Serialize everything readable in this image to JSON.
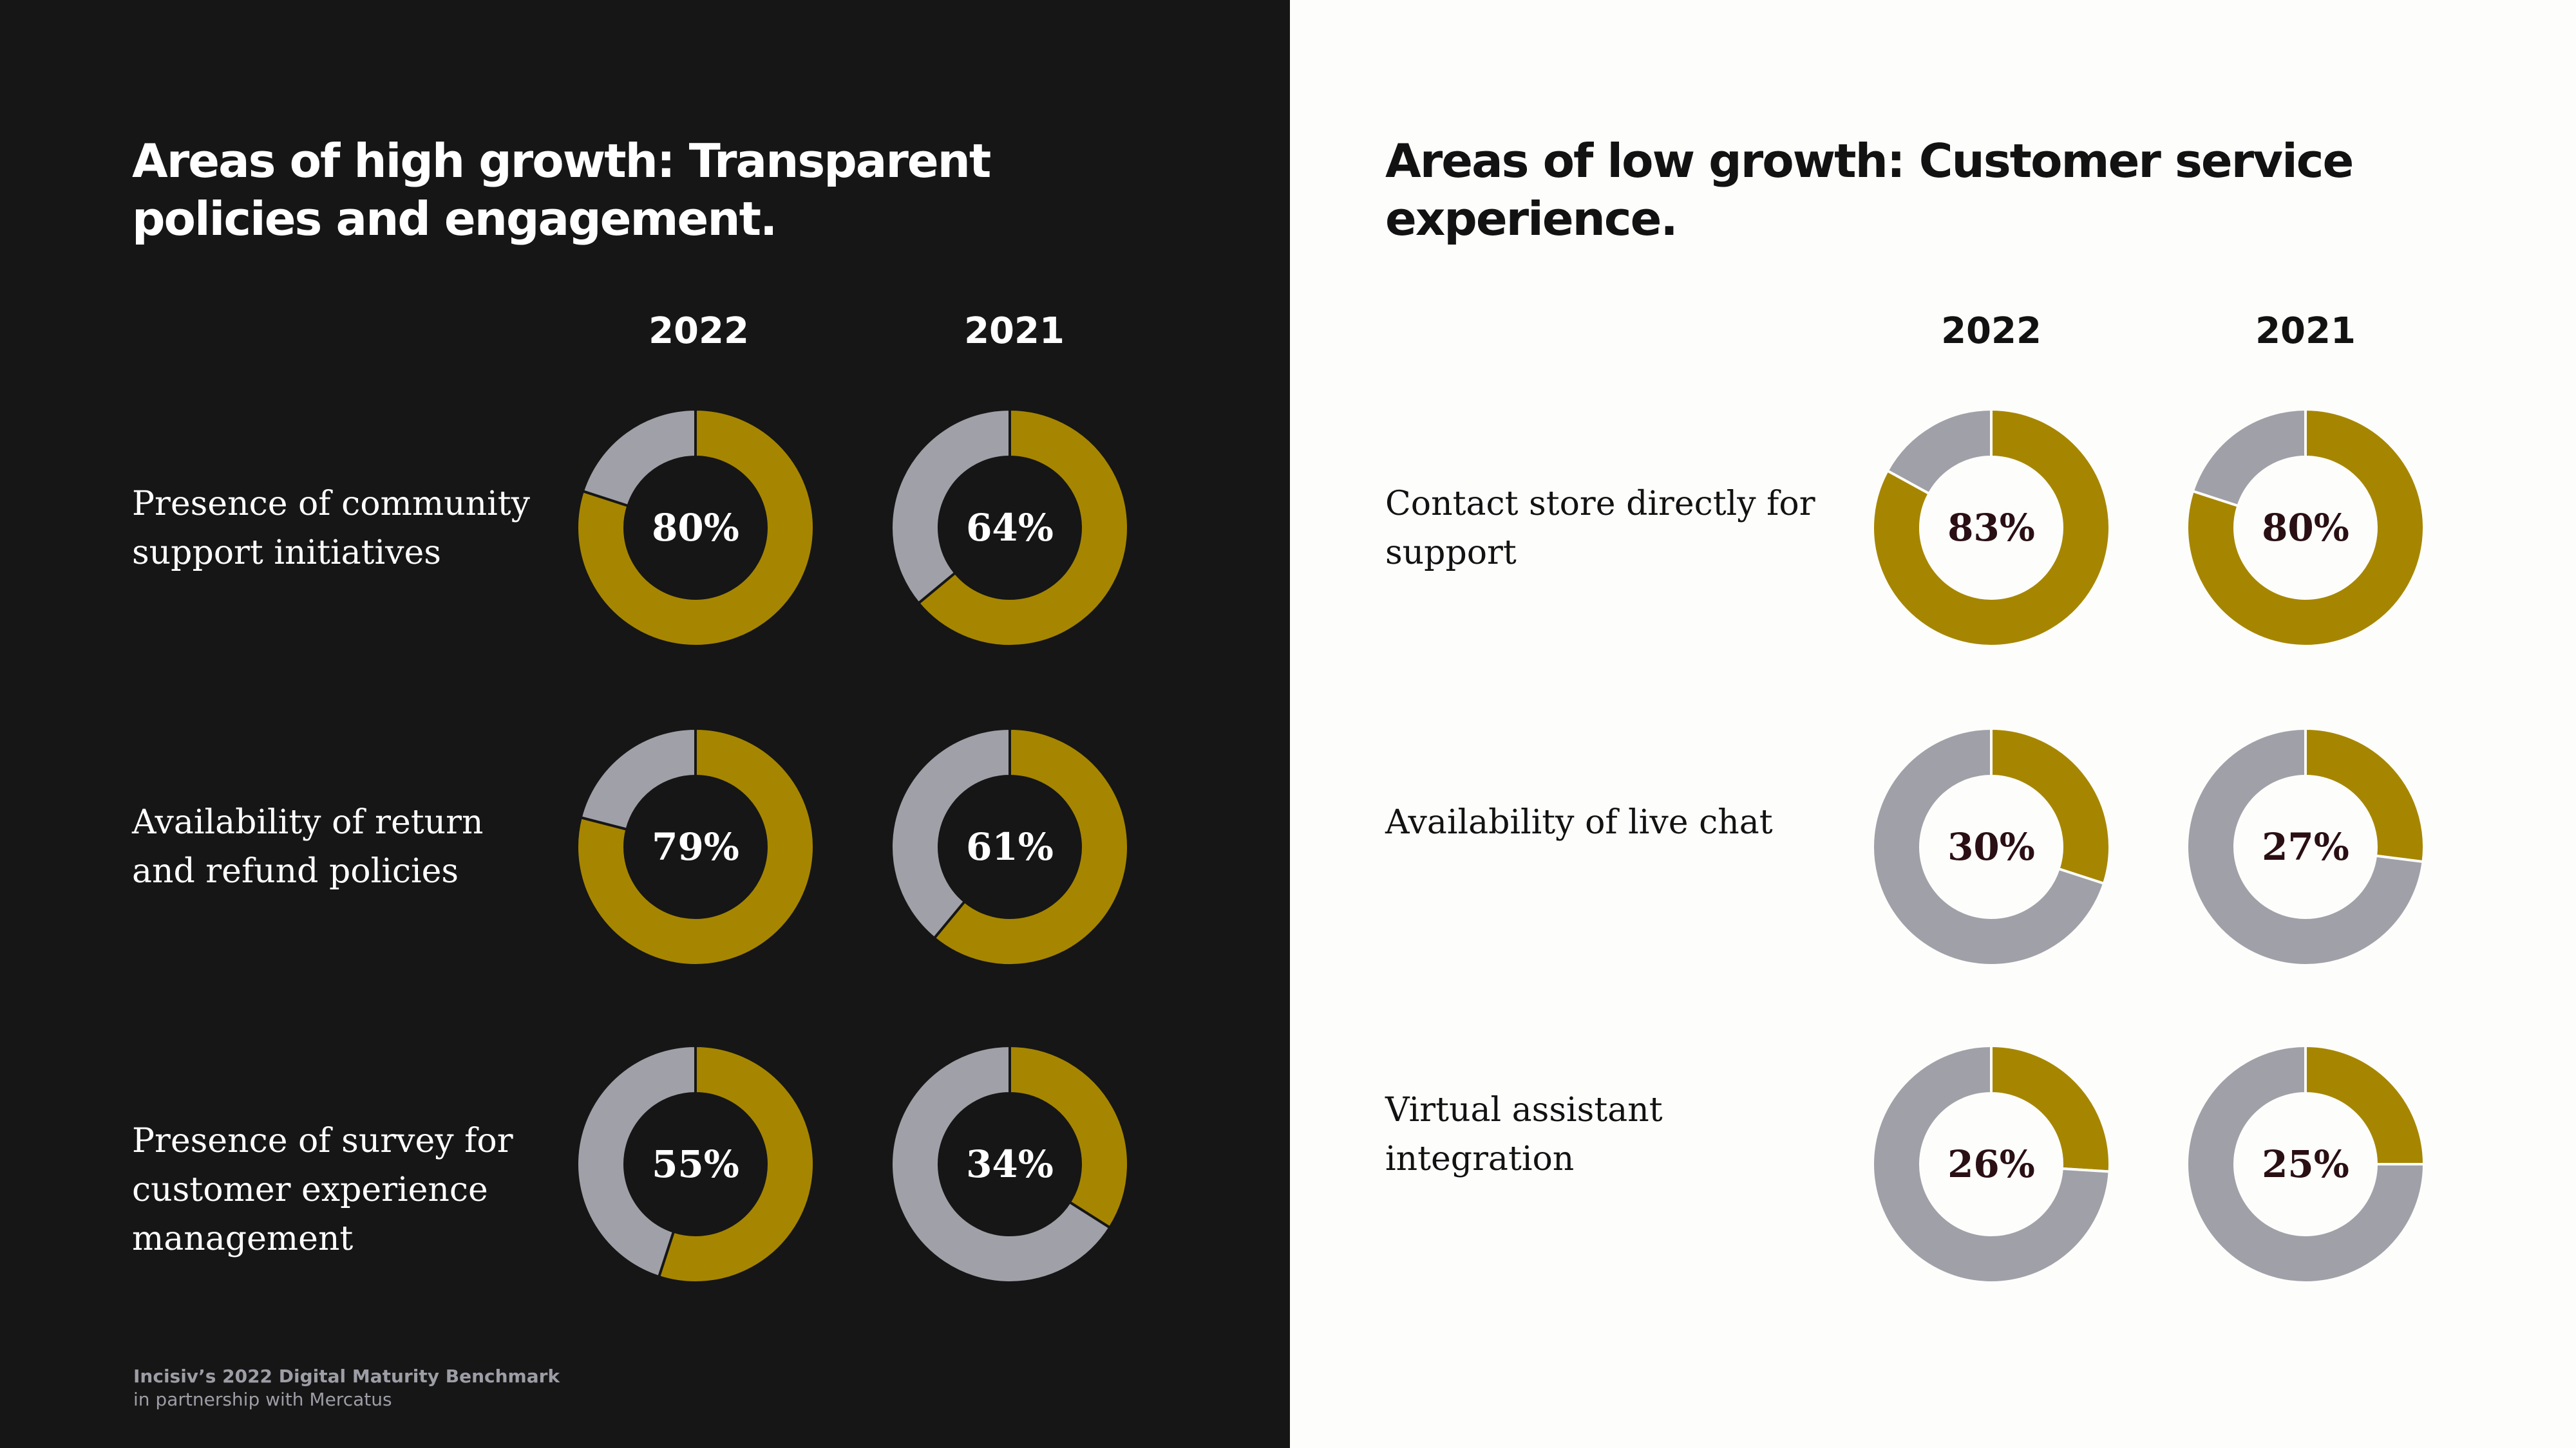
{
  "colors": {
    "filled": "#a68600",
    "remaining": "#a0a0a8",
    "dark_bg": "#161616",
    "light_bg": "#fdfdfb"
  },
  "left": {
    "title": "Areas of high growth: Transparent policies and engagement.",
    "year_headers": [
      "2022",
      "2021"
    ],
    "rows": [
      {
        "label_lines": [
          "Presence of community",
          "support initiatives"
        ],
        "values": [
          80,
          64
        ],
        "value_labels": [
          "80%",
          "64%"
        ]
      },
      {
        "label_lines": [
          "Availability of return",
          "and refund policies"
        ],
        "values": [
          79,
          61
        ],
        "value_labels": [
          "79%",
          "61%"
        ]
      },
      {
        "label_lines": [
          "Presence of survey for",
          "customer experience",
          "management"
        ],
        "values": [
          55,
          34
        ],
        "value_labels": [
          "55%",
          "34%"
        ]
      }
    ]
  },
  "right": {
    "title": "Areas of low growth: Customer service experience.",
    "year_headers": [
      "2022",
      "2021"
    ],
    "rows": [
      {
        "label_lines": [
          "Contact store directly for",
          "support"
        ],
        "values": [
          83,
          80
        ],
        "value_labels": [
          "83%",
          "80%"
        ]
      },
      {
        "label_lines": [
          "Availability of live chat"
        ],
        "values": [
          30,
          27
        ],
        "value_labels": [
          "30%",
          "27%"
        ]
      },
      {
        "label_lines": [
          "Virtual assistant integration"
        ],
        "values": [
          26,
          25
        ],
        "value_labels": [
          "26%",
          "25%"
        ]
      }
    ]
  },
  "footer": {
    "title": "Incisiv’s 2022 Digital Maturity Benchmark",
    "subtitle": "in partnership with Mercatus"
  },
  "chart_data": [
    {
      "type": "pie",
      "title": "Areas of high growth: Transparent policies and engagement.",
      "categories": [
        "Presence of community support initiatives",
        "Availability of return and refund policies",
        "Presence of survey for customer experience management"
      ],
      "series": [
        {
          "name": "2022",
          "values": [
            80,
            79,
            55
          ]
        },
        {
          "name": "2021",
          "values": [
            64,
            61,
            34
          ]
        }
      ],
      "unit": "%"
    },
    {
      "type": "pie",
      "title": "Areas of low growth: Customer service experience.",
      "categories": [
        "Contact store directly for support",
        "Availability of live chat",
        "Virtual assistant integration"
      ],
      "series": [
        {
          "name": "2022",
          "values": [
            83,
            30,
            26
          ]
        },
        {
          "name": "2021",
          "values": [
            80,
            27,
            25
          ]
        }
      ],
      "unit": "%"
    }
  ]
}
